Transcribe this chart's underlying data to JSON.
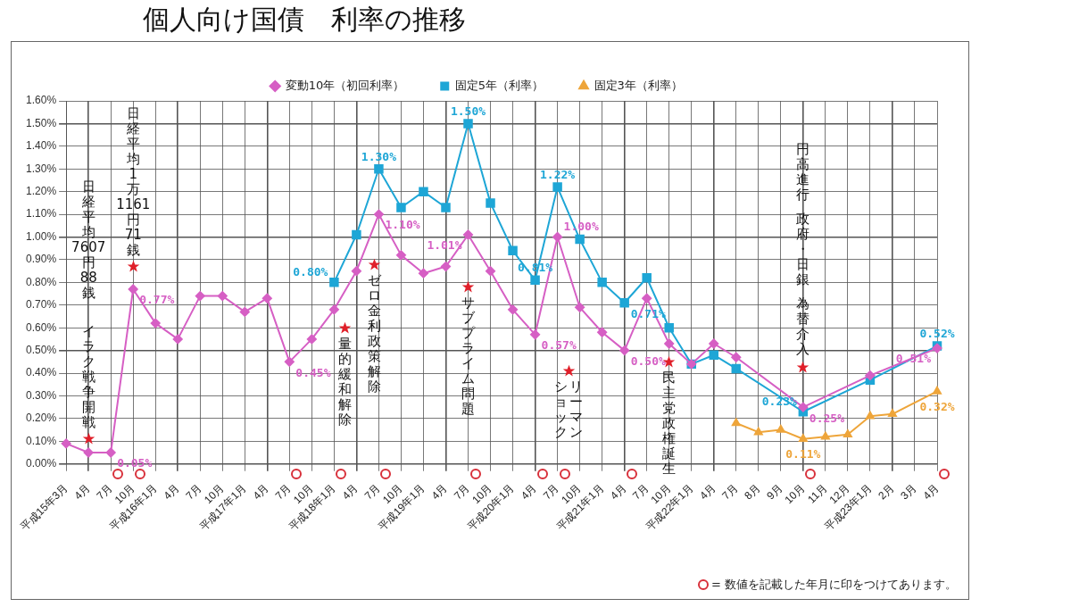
{
  "chart_data": {
    "type": "line",
    "title": "個人向け国債　利率の推移",
    "categories": [
      "平成15年3月",
      "4月",
      "7月",
      "10月",
      "平成16年1月",
      "4月",
      "7月",
      "10月",
      "平成17年1月",
      "4月",
      "7月",
      "10月",
      "平成18年1月",
      "4月",
      "7月",
      "10月",
      "平成19年1月",
      "4月",
      "7月",
      "10月",
      "平成20年1月",
      "4月",
      "7月",
      "10月",
      "平成21年1月",
      "4月",
      "7月",
      "10月",
      "平成22年1月",
      "4月",
      "7月",
      "8月",
      "9月",
      "10月",
      "11月",
      "12月",
      "平成23年1月",
      "2月",
      "3月",
      "4月"
    ],
    "series": [
      {
        "name": "変動10年（初回利率）",
        "color": "#d65fc4",
        "marker": "diamond",
        "values": [
          0.09,
          0.05,
          0.05,
          0.77,
          0.62,
          0.55,
          0.74,
          0.74,
          0.67,
          0.73,
          0.45,
          0.55,
          0.68,
          0.85,
          1.1,
          0.92,
          0.84,
          0.87,
          1.01,
          0.85,
          0.68,
          0.57,
          1.0,
          0.69,
          0.58,
          0.5,
          0.73,
          0.53,
          0.44,
          0.53,
          0.47,
          null,
          null,
          0.25,
          null,
          null,
          0.39,
          null,
          null,
          0.51
        ],
        "value_labels": [
          null,
          null,
          "0.05%",
          "0.77%",
          null,
          null,
          null,
          null,
          null,
          null,
          "0.45%",
          null,
          null,
          null,
          "1.10%",
          null,
          null,
          null,
          "1.01%",
          null,
          null,
          "0.57%",
          "1.00%",
          null,
          null,
          "0.50%",
          null,
          null,
          null,
          null,
          null,
          null,
          null,
          "0.25%",
          null,
          null,
          null,
          null,
          null,
          "0.51%"
        ]
      },
      {
        "name": "固定5年（利率）",
        "color": "#1ea6d6",
        "marker": "square",
        "values": [
          null,
          null,
          null,
          null,
          null,
          null,
          null,
          null,
          null,
          null,
          null,
          null,
          0.8,
          1.01,
          1.3,
          1.13,
          1.2,
          1.13,
          1.5,
          1.15,
          0.94,
          0.81,
          1.22,
          0.99,
          0.8,
          0.71,
          0.82,
          0.6,
          0.44,
          0.48,
          0.42,
          null,
          null,
          0.23,
          null,
          null,
          0.37,
          null,
          null,
          0.52
        ],
        "value_labels": [
          null,
          null,
          null,
          null,
          null,
          null,
          null,
          null,
          null,
          null,
          null,
          null,
          "0.80%",
          null,
          "1.30%",
          null,
          null,
          null,
          "1.50%",
          null,
          null,
          "0.81%",
          "1.22%",
          null,
          null,
          "0.71%",
          null,
          null,
          null,
          null,
          null,
          null,
          null,
          "0.23%",
          null,
          null,
          null,
          null,
          null,
          "0.52%"
        ]
      },
      {
        "name": "固定3年（利率）",
        "color": "#eea53a",
        "marker": "triangle",
        "values": [
          null,
          null,
          null,
          null,
          null,
          null,
          null,
          null,
          null,
          null,
          null,
          null,
          null,
          null,
          null,
          null,
          null,
          null,
          null,
          null,
          null,
          null,
          null,
          null,
          null,
          null,
          null,
          null,
          null,
          null,
          0.18,
          0.14,
          0.15,
          0.11,
          0.12,
          0.13,
          0.21,
          0.22,
          null,
          0.32
        ],
        "value_labels": [
          null,
          null,
          null,
          null,
          null,
          null,
          null,
          null,
          null,
          null,
          null,
          null,
          null,
          null,
          null,
          null,
          null,
          null,
          null,
          null,
          null,
          null,
          null,
          null,
          null,
          null,
          null,
          null,
          null,
          null,
          null,
          null,
          null,
          "0.11%",
          null,
          null,
          null,
          null,
          null,
          "0.32%"
        ]
      }
    ],
    "ylim": [
      0,
      1.6
    ],
    "yticks": [
      {
        "value": 0,
        "label": "0.00%"
      },
      {
        "value": 0.1,
        "label": "0.10%"
      },
      {
        "value": 0.2,
        "label": "0.20%"
      },
      {
        "value": 0.3,
        "label": "0.30%"
      },
      {
        "value": 0.4,
        "label": "0.40%"
      },
      {
        "value": 0.5,
        "label": "0.50%"
      },
      {
        "value": 0.6,
        "label": "0.60%"
      },
      {
        "value": 0.7,
        "label": "0.70%"
      },
      {
        "value": 0.8,
        "label": "0.80%"
      },
      {
        "value": 0.9,
        "label": "0.90%"
      },
      {
        "value": 1.0,
        "label": "1.00%"
      },
      {
        "value": 1.1,
        "label": "1.10%"
      },
      {
        "value": 1.2,
        "label": "1.20%"
      },
      {
        "value": 1.3,
        "label": "1.30%"
      },
      {
        "value": 1.4,
        "label": "1.40%"
      },
      {
        "value": 1.5,
        "label": "1.50%"
      },
      {
        "value": 1.6,
        "label": "1.60%"
      }
    ],
    "grid": true,
    "legend": "top",
    "line_style": "solid",
    "annotations": [
      "イラク戦争開戦",
      "日経平均7607円88銭",
      "日経平均1万1161円71銭",
      "量的緩和解除",
      "ゼロ金利政策解除",
      "サブプライム問題",
      "リーマンショック",
      "民主党政権誕生",
      "円高進行",
      "政府・日銀",
      "為替介入",
      "= 数値を記載した年月に印をつけてあります。"
    ]
  }
}
